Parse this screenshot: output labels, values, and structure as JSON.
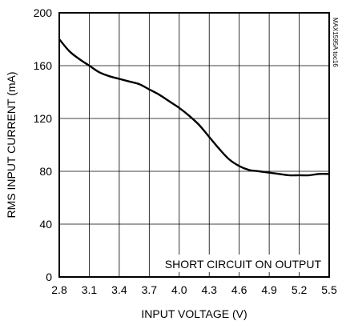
{
  "chart_data": {
    "type": "line",
    "title": "",
    "xlabel": "INPUT VOLTAGE (V)",
    "ylabel": "RMS INPUT CURRENT (mA)",
    "xlim": [
      2.8,
      5.5
    ],
    "ylim": [
      0,
      200
    ],
    "x_ticks": [
      2.8,
      3.1,
      3.4,
      3.7,
      4.0,
      4.3,
      4.6,
      4.9,
      5.2,
      5.5
    ],
    "x_tick_labels": [
      "2.8",
      "3.1",
      "3.4",
      "3.7",
      "4.0",
      "4.3",
      "4.6",
      "4.9",
      "5.2",
      "5.5"
    ],
    "y_ticks": [
      0,
      40,
      80,
      120,
      160,
      200
    ],
    "y_tick_labels": [
      "0",
      "40",
      "80",
      "120",
      "160",
      "200"
    ],
    "grid": true,
    "annotation": "SHORT CIRCUIT ON OUTPUT",
    "reference_id": "MAX1595A toc16",
    "series": [
      {
        "x": [
          2.8,
          2.9,
          3.0,
          3.1,
          3.2,
          3.3,
          3.4,
          3.5,
          3.6,
          3.7,
          3.8,
          3.9,
          4.0,
          4.1,
          4.2,
          4.3,
          4.4,
          4.5,
          4.6,
          4.7,
          4.8,
          4.9,
          5.0,
          5.1,
          5.2,
          5.3,
          5.4,
          5.5
        ],
        "y": [
          180,
          171,
          165,
          160,
          155,
          152,
          150,
          148,
          146,
          142,
          138,
          133,
          128,
          122,
          115,
          106,
          97,
          89,
          84,
          81,
          80,
          79,
          78,
          77,
          77,
          77,
          78,
          78
        ],
        "color": "#000000"
      }
    ]
  }
}
